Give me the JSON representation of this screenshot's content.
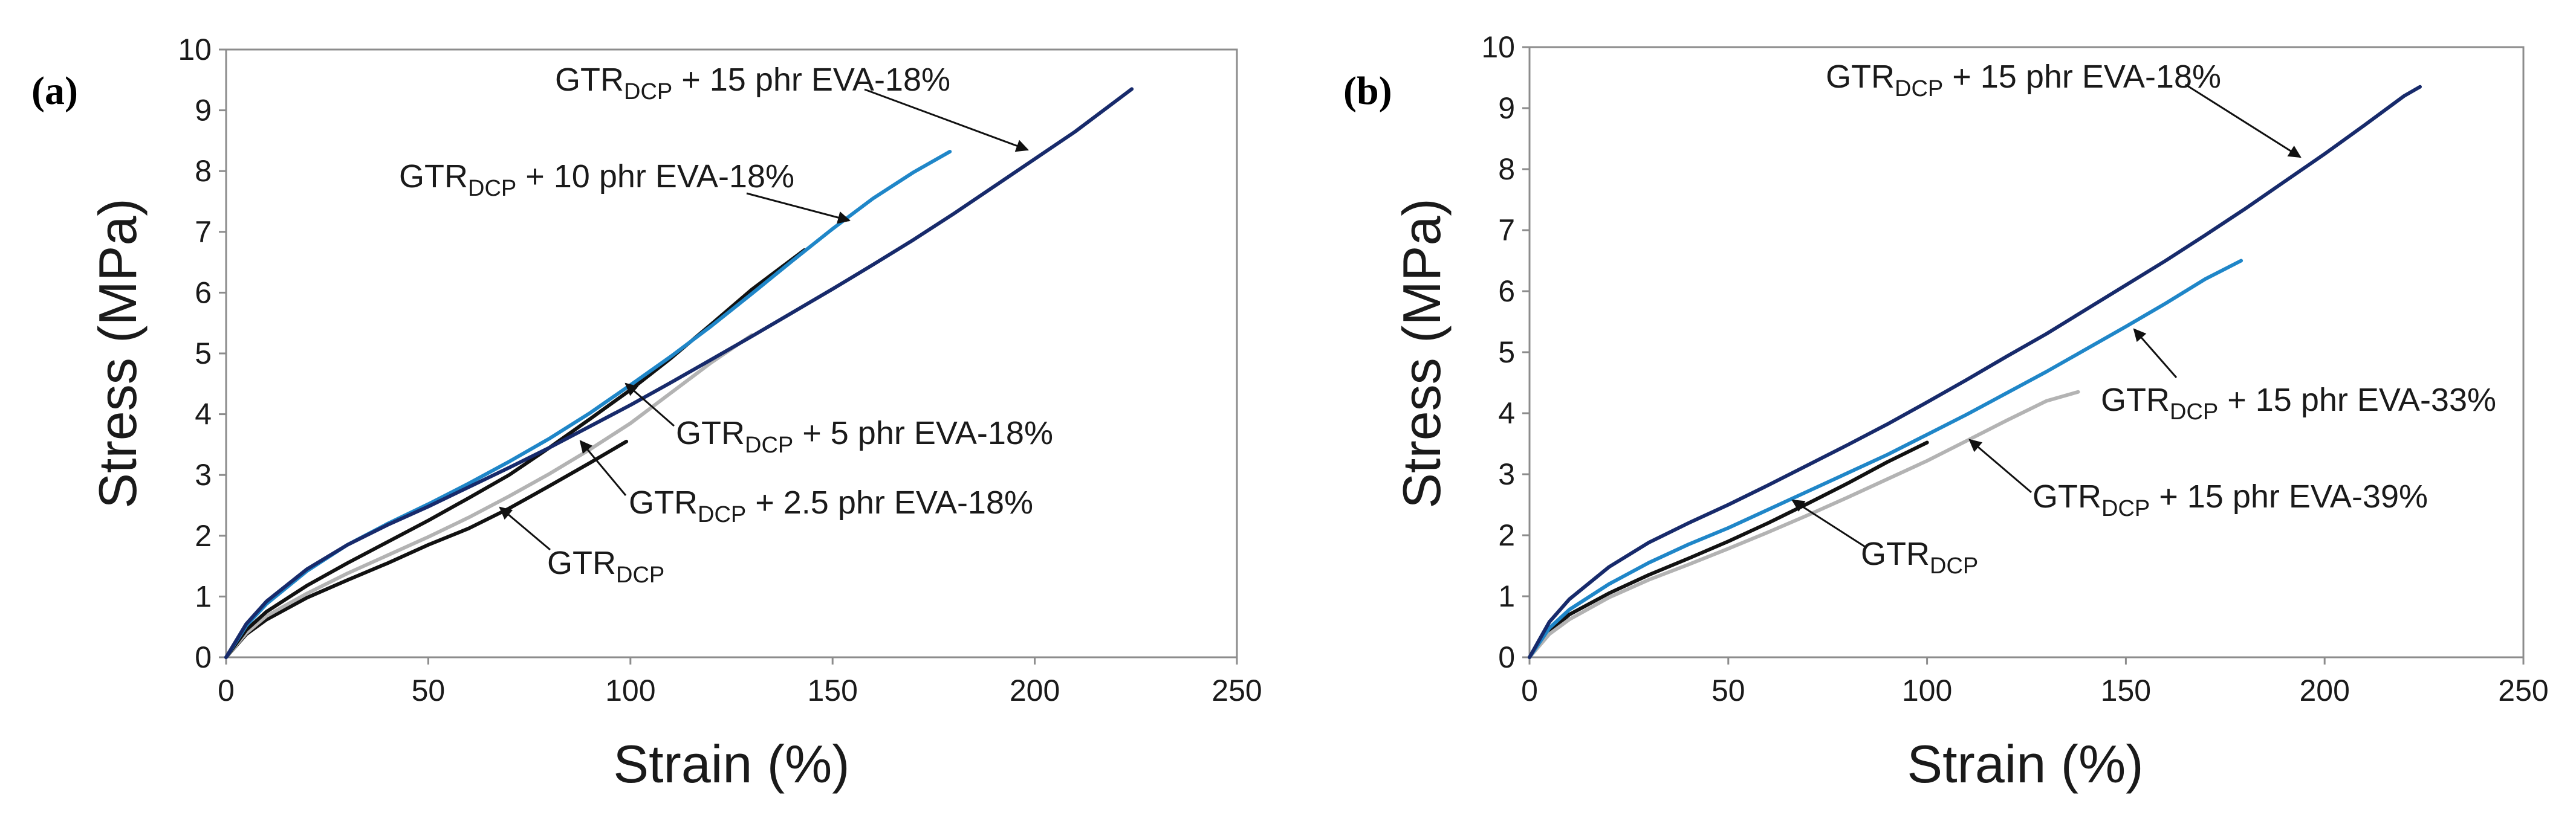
{
  "colors": {
    "black": "#111111",
    "gray": "#b3b3b3",
    "light_blue": "#1f86c8",
    "navy": "#172a6b",
    "axis": "#8c8c8c"
  },
  "chart_data": [
    {
      "type": "line",
      "panel_label": "(a)",
      "xlabel": "Strain (%)",
      "ylabel": "Stress (MPa)",
      "xlim": [
        0,
        250
      ],
      "ylim": [
        0,
        10
      ],
      "xticks": [
        0,
        50,
        100,
        150,
        200,
        250
      ],
      "yticks": [
        0,
        1,
        2,
        3,
        4,
        5,
        6,
        7,
        8,
        9,
        10
      ],
      "series": [
        {
          "name": "GTRDCP",
          "color": "black",
          "x": [
            0,
            5,
            10,
            20,
            30,
            40,
            50,
            60,
            70,
            80,
            90,
            99
          ],
          "y": [
            0,
            0.38,
            0.62,
            0.98,
            1.27,
            1.55,
            1.85,
            2.12,
            2.45,
            2.82,
            3.2,
            3.55
          ]
        },
        {
          "name": "GTRDCP + 2.5 phr EVA-18%",
          "color": "gray",
          "x": [
            0,
            5,
            10,
            20,
            30,
            40,
            50,
            60,
            70,
            80,
            90,
            100,
            110,
            120,
            130
          ],
          "y": [
            0,
            0.4,
            0.68,
            1.05,
            1.38,
            1.68,
            1.98,
            2.3,
            2.65,
            3.02,
            3.42,
            3.85,
            4.35,
            4.85,
            5.3
          ]
        },
        {
          "name": "GTRDCP + 5 phr EVA-18%",
          "color": "black",
          "x": [
            0,
            5,
            10,
            20,
            30,
            40,
            50,
            60,
            70,
            80,
            90,
            100,
            110,
            120,
            130,
            143
          ],
          "y": [
            0,
            0.45,
            0.75,
            1.18,
            1.55,
            1.9,
            2.25,
            2.62,
            3.0,
            3.45,
            3.92,
            4.4,
            4.92,
            5.48,
            6.05,
            6.7
          ]
        },
        {
          "name": "GTRDCP + 10 phr EVA-18%",
          "color": "light_blue",
          "x": [
            0,
            5,
            10,
            20,
            30,
            40,
            50,
            60,
            70,
            80,
            90,
            100,
            110,
            120,
            130,
            140,
            150,
            160,
            170,
            179
          ],
          "y": [
            0,
            0.52,
            0.88,
            1.42,
            1.85,
            2.2,
            2.52,
            2.86,
            3.22,
            3.6,
            4.02,
            4.48,
            4.95,
            5.45,
            5.98,
            6.52,
            7.05,
            7.55,
            7.98,
            8.32
          ]
        },
        {
          "name": "GTRDCP + 15 phr EVA-18%",
          "color": "navy",
          "x": [
            0,
            5,
            10,
            20,
            30,
            40,
            50,
            60,
            70,
            80,
            90,
            100,
            110,
            120,
            130,
            140,
            150,
            160,
            170,
            180,
            190,
            200,
            210,
            220,
            224
          ],
          "y": [
            0,
            0.55,
            0.92,
            1.45,
            1.85,
            2.18,
            2.48,
            2.8,
            3.12,
            3.45,
            3.8,
            4.15,
            4.52,
            4.9,
            5.28,
            5.67,
            6.06,
            6.46,
            6.87,
            7.3,
            7.75,
            8.2,
            8.65,
            9.15,
            9.35
          ]
        }
      ],
      "annotations": [
        {
          "main": "GTR",
          "sub": "DCP",
          "rest": " + 15 phr EVA-18%",
          "series": 4
        },
        {
          "main": "GTR",
          "sub": "DCP",
          "rest": " + 10 phr EVA-18%",
          "series": 3
        },
        {
          "main": "GTR",
          "sub": "DCP",
          "rest": " + 5 phr EVA-18%",
          "series": 2
        },
        {
          "main": "GTR",
          "sub": "DCP",
          "rest": " + 2.5 phr EVA-18%",
          "series": 1
        },
        {
          "main": "GTR",
          "sub": "DCP",
          "rest": "",
          "series": 0
        }
      ]
    },
    {
      "type": "line",
      "panel_label": "(b)",
      "xlabel": "Strain (%)",
      "ylabel": "Stress (MPa)",
      "xlim": [
        0,
        250
      ],
      "ylim": [
        0,
        10
      ],
      "xticks": [
        0,
        50,
        100,
        150,
        200,
        250
      ],
      "yticks": [
        0,
        1,
        2,
        3,
        4,
        5,
        6,
        7,
        8,
        9,
        10
      ],
      "series": [
        {
          "name": "GTRDCP",
          "color": "black",
          "x": [
            0,
            5,
            10,
            20,
            30,
            40,
            50,
            60,
            70,
            80,
            90,
            100
          ],
          "y": [
            0,
            0.42,
            0.7,
            1.05,
            1.35,
            1.62,
            1.9,
            2.2,
            2.52,
            2.85,
            3.2,
            3.52
          ]
        },
        {
          "name": "GTRDCP + 15 phr EVA-39%",
          "color": "gray",
          "x": [
            0,
            5,
            10,
            20,
            30,
            40,
            50,
            60,
            70,
            80,
            90,
            100,
            110,
            120,
            130,
            138
          ],
          "y": [
            0,
            0.38,
            0.62,
            0.98,
            1.27,
            1.52,
            1.78,
            2.05,
            2.33,
            2.62,
            2.92,
            3.22,
            3.55,
            3.88,
            4.2,
            4.35
          ]
        },
        {
          "name": "GTRDCP + 15 phr EVA-33%",
          "color": "light_blue",
          "x": [
            0,
            5,
            10,
            20,
            30,
            40,
            50,
            60,
            70,
            80,
            90,
            100,
            110,
            120,
            130,
            140,
            150,
            160,
            170,
            179
          ],
          "y": [
            0,
            0.48,
            0.78,
            1.2,
            1.55,
            1.85,
            2.12,
            2.42,
            2.72,
            3.02,
            3.32,
            3.65,
            3.98,
            4.33,
            4.68,
            5.05,
            5.42,
            5.8,
            6.2,
            6.5
          ]
        },
        {
          "name": "GTRDCP + 15 phr EVA-18%",
          "color": "navy",
          "x": [
            0,
            5,
            10,
            20,
            30,
            40,
            50,
            60,
            70,
            80,
            90,
            100,
            110,
            120,
            130,
            140,
            150,
            160,
            170,
            180,
            190,
            200,
            210,
            220,
            224
          ],
          "y": [
            0,
            0.58,
            0.95,
            1.48,
            1.88,
            2.2,
            2.5,
            2.82,
            3.15,
            3.48,
            3.82,
            4.18,
            4.55,
            4.93,
            5.3,
            5.7,
            6.1,
            6.5,
            6.92,
            7.35,
            7.8,
            8.25,
            8.72,
            9.2,
            9.35
          ]
        }
      ],
      "annotations": [
        {
          "main": "GTR",
          "sub": "DCP",
          "rest": " + 15 phr EVA-18%",
          "series": 3
        },
        {
          "main": "GTR",
          "sub": "DCP",
          "rest": " + 15 phr EVA-33%",
          "series": 2
        },
        {
          "main": "GTR",
          "sub": "DCP",
          "rest": " + 15 phr EVA-39%",
          "series": 1
        },
        {
          "main": "GTR",
          "sub": "DCP",
          "rest": "",
          "series": 0
        }
      ]
    }
  ]
}
